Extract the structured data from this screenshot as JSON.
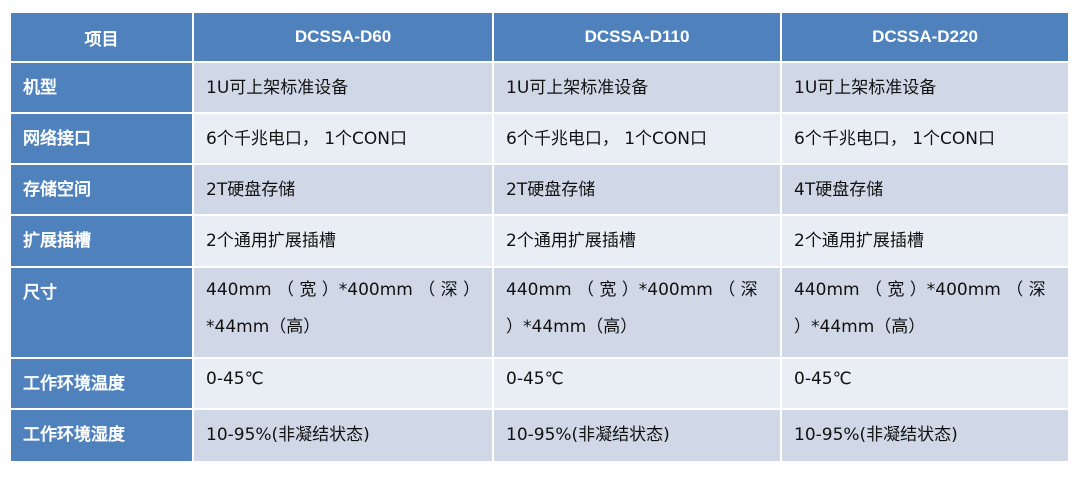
{
  "header": [
    "项目",
    "DCSSA-D60",
    "DCSSA-D110",
    "DCSSA-D220"
  ],
  "rows": [
    {
      "label": "机型",
      "values": [
        "1U可上架标准设备",
        "1U可上架标准设备",
        "1U可上架标准设备"
      ]
    },
    {
      "label": "网络接口",
      "values": [
        "6个千兆电口， 1个CON口",
        "6个千兆电口， 1个CON口",
        "6个千兆电口， 1个CON口"
      ]
    },
    {
      "label": "存储空间",
      "values": [
        "2T硬盘存储",
        "2T硬盘存储",
        "4T硬盘存储"
      ]
    },
    {
      "label": "扩展插槽",
      "values": [
        "2个通用扩展插槽",
        "2个通用扩展插槽",
        "2个通用扩展插槽"
      ]
    },
    {
      "label": "尺寸",
      "values": [
        "440mm （ 宽 ）*400mm （ 深 ）*44mm（高）",
        "440mm （ 宽 ）*400mm （ 深 ）*44mm（高）",
        "440mm （ 宽 ）*400mm （ 深 ）*44mm（高）"
      ]
    },
    {
      "label": "工作环境温度",
      "values": [
        "0-45℃",
        "0-45℃",
        "0-45℃"
      ]
    },
    {
      "label": "工作环境湿度",
      "values": [
        "10-95%(非凝结状态)",
        "10-95%(非凝结状态)",
        "10-95%(非凝结状态)"
      ]
    }
  ],
  "colors": {
    "header": "#4f81bd",
    "row_odd": "#d0d8e8",
    "row_even": "#e9edf4"
  }
}
